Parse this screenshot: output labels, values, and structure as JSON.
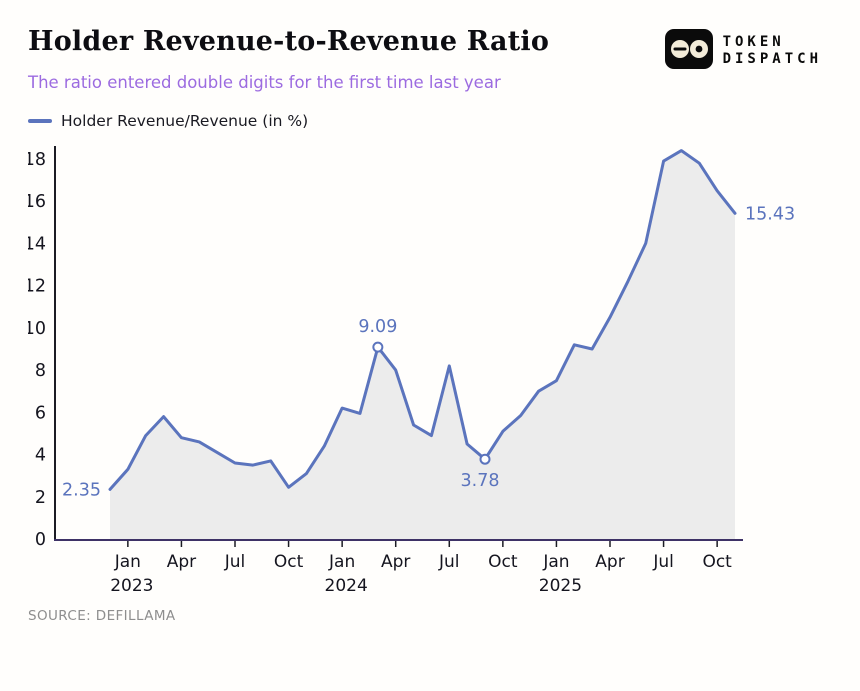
{
  "header": {
    "title": "Holder Revenue-to-Revenue Ratio",
    "subtitle": "The ratio entered double digits for the first time last year",
    "logo": {
      "line1": "TOKEN",
      "line2": "DISPATCH"
    }
  },
  "legend": {
    "label": "Holder Revenue/Revenue (in %)"
  },
  "footer": {
    "source": "SOURCE: DEFILLAMA"
  },
  "colors": {
    "line": "#5b74bd",
    "area": "#ececec",
    "annotation": "#5b74bd",
    "subtitle": "#9c6be0",
    "y_axis": "#1c1c24",
    "x_axis": "#3e3266",
    "tick_text": "#15151f",
    "logo_bg": "#0b0b0b",
    "logo_eye": "#f3ecd9"
  },
  "chart_data": {
    "type": "line",
    "title": "Holder Revenue-to-Revenue Ratio",
    "series_name": "Holder Revenue/Revenue (in %)",
    "xlabel": "",
    "ylabel": "Holder Revenue/Revenue (in %)",
    "ylim": [
      0,
      18
    ],
    "yticks": [
      0,
      2,
      4,
      6,
      8,
      10,
      12,
      14,
      16,
      18
    ],
    "grid": false,
    "legend_position": "top-left",
    "x": [
      "Dec 2022",
      "Jan 2023",
      "Feb 2023",
      "Mar 2023",
      "Apr 2023",
      "May 2023",
      "Jun 2023",
      "Jul 2023",
      "Aug 2023",
      "Sep 2023",
      "Oct 2023",
      "Nov 2023",
      "Dec 2023",
      "Jan 2024",
      "Feb 2024",
      "Mar 2024",
      "Apr 2024",
      "May 2024",
      "Jun 2024",
      "Jul 2024",
      "Aug 2024",
      "Sep 2024",
      "Oct 2024",
      "Nov 2024",
      "Dec 2024",
      "Jan 2025",
      "Feb 2025",
      "Mar 2025",
      "Apr 2025",
      "May 2025",
      "Jun 2025",
      "Jul 2025",
      "Aug 2025",
      "Sep 2025",
      "Oct 2025",
      "Nov 2025"
    ],
    "values": [
      2.35,
      3.3,
      4.9,
      5.8,
      4.8,
      4.6,
      4.1,
      3.6,
      3.5,
      3.7,
      2.45,
      3.1,
      4.4,
      6.2,
      5.95,
      9.09,
      8.0,
      5.4,
      4.9,
      8.2,
      4.5,
      3.78,
      5.1,
      5.85,
      7.0,
      7.5,
      9.2,
      9.0,
      10.5,
      12.2,
      14.0,
      17.9,
      18.4,
      17.8,
      16.5,
      15.43
    ],
    "xticks": [
      {
        "index": 1,
        "label": "Jan",
        "year": "2023"
      },
      {
        "index": 4,
        "label": "Apr"
      },
      {
        "index": 7,
        "label": "Jul"
      },
      {
        "index": 10,
        "label": "Oct"
      },
      {
        "index": 13,
        "label": "Jan",
        "year": "2024"
      },
      {
        "index": 16,
        "label": "Apr"
      },
      {
        "index": 19,
        "label": "Jul"
      },
      {
        "index": 22,
        "label": "Oct"
      },
      {
        "index": 25,
        "label": "Jan",
        "year": "2025"
      },
      {
        "index": 28,
        "label": "Apr"
      },
      {
        "index": 31,
        "label": "Jul"
      },
      {
        "index": 34,
        "label": "Oct"
      }
    ],
    "annotations": [
      {
        "index": 0,
        "value": 2.35,
        "label": "2.35",
        "position": "left",
        "marker": false
      },
      {
        "index": 15,
        "value": 9.09,
        "label": "9.09",
        "position": "above",
        "marker": true
      },
      {
        "index": 21,
        "value": 3.78,
        "label": "3.78",
        "position": "below",
        "marker": true
      },
      {
        "index": 35,
        "value": 15.43,
        "label": "15.43",
        "position": "right",
        "marker": false
      }
    ]
  }
}
